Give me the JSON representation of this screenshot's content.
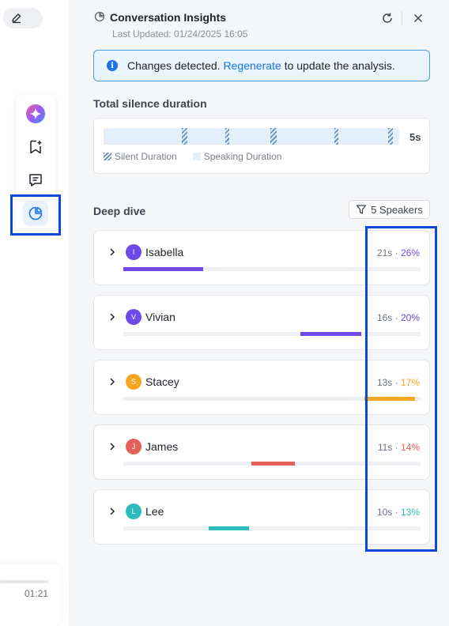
{
  "player": {
    "time": "01:21"
  },
  "header": {
    "title": "Conversation Insights",
    "last_updated": "Last Updated: 01/24/2025 16:05"
  },
  "notice": {
    "text_before": "Changes detected.",
    "link": "Regenerate",
    "text_after": "to update the analysis."
  },
  "silence": {
    "label": "Total silence duration",
    "total": "5s",
    "legend_silent": "Silent Duration",
    "legend_speaking": "Speaking Duration"
  },
  "deep_dive": {
    "label": "Deep dive",
    "speakers_button": "5 Speakers"
  },
  "speakers": [
    {
      "initial": "I",
      "name": "Isabella",
      "duration": "21s",
      "sep": " · ",
      "percent": "26%",
      "color": "#7048e8"
    },
    {
      "initial": "V",
      "name": "Vivian",
      "duration": "16s",
      "sep": " · ",
      "percent": "20%",
      "color": "#7048e8"
    },
    {
      "initial": "S",
      "name": "Stacey",
      "duration": "13s",
      "sep": " · ",
      "percent": "17%",
      "color": "#f5a623"
    },
    {
      "initial": "J",
      "name": "James",
      "duration": "11s",
      "sep": " · ",
      "percent": "14%",
      "color": "#e5605a"
    },
    {
      "initial": "L",
      "name": "Lee",
      "duration": "10s",
      "sep": " · ",
      "percent": "13%",
      "color": "#2cbcbf"
    }
  ],
  "colors": {
    "accent": "#1a73e8",
    "highlight_box": "#0b4ad6"
  }
}
